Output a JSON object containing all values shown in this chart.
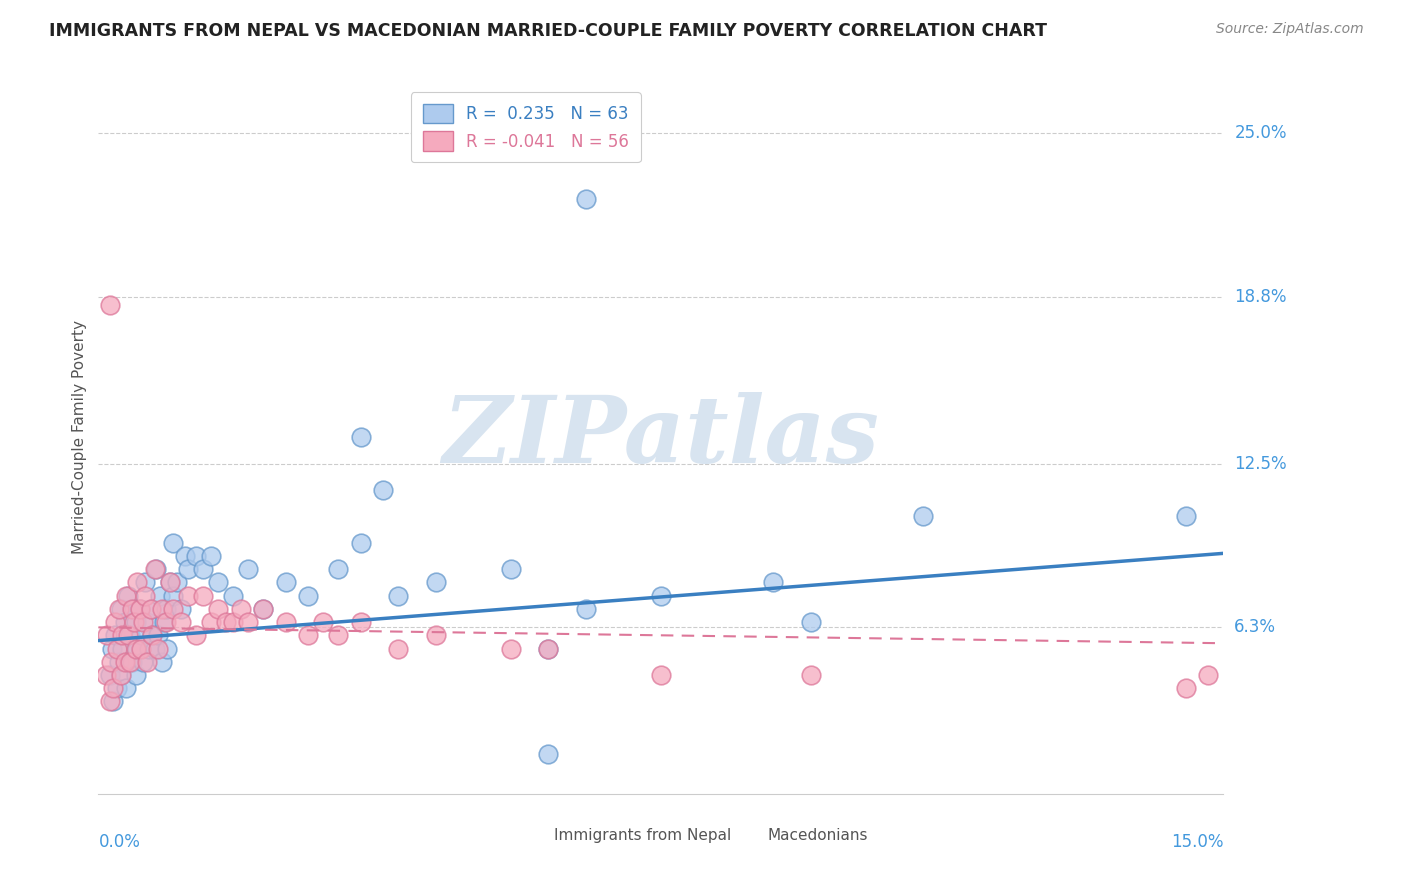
{
  "title": "IMMIGRANTS FROM NEPAL VS MACEDONIAN MARRIED-COUPLE FAMILY POVERTY CORRELATION CHART",
  "source": "Source: ZipAtlas.com",
  "ylabel": "Married-Couple Family Poverty",
  "xlim": [
    0.0,
    15.0
  ],
  "ylim": [
    0.0,
    27.0
  ],
  "ytick_labels": [
    "6.3%",
    "12.5%",
    "18.8%",
    "25.0%"
  ],
  "ytick_values": [
    6.3,
    12.5,
    18.8,
    25.0
  ],
  "legend1_R": "0.235",
  "legend1_N": "63",
  "legend2_R": "-0.041",
  "legend2_N": "56",
  "series1_color": "#aecbee",
  "series1_edge": "#6699cc",
  "series2_color": "#f5aabe",
  "series2_edge": "#dd7799",
  "line1_color": "#3a7fc1",
  "line2_color": "#dd7799",
  "watermark_color": "#d8e4f0",
  "background_color": "#ffffff",
  "grid_color": "#cccccc",
  "title_color": "#222222",
  "right_label_color": "#4499dd",
  "nepal_x": [
    0.15,
    0.18,
    0.2,
    0.22,
    0.25,
    0.27,
    0.3,
    0.3,
    0.32,
    0.35,
    0.37,
    0.4,
    0.4,
    0.42,
    0.45,
    0.47,
    0.5,
    0.5,
    0.52,
    0.55,
    0.57,
    0.6,
    0.62,
    0.65,
    0.67,
    0.7,
    0.72,
    0.75,
    0.77,
    0.8,
    0.82,
    0.85,
    0.87,
    0.9,
    0.92,
    0.95,
    1.0,
    1.0,
    1.05,
    1.1,
    1.15,
    1.2,
    1.3,
    1.4,
    1.5,
    1.6,
    1.8,
    2.0,
    2.2,
    2.5,
    2.8,
    3.2,
    3.5,
    4.0,
    4.5,
    5.5,
    6.0,
    6.5,
    7.5,
    9.0,
    9.5,
    11.0,
    14.5
  ],
  "nepal_y": [
    4.5,
    5.5,
    3.5,
    6.0,
    4.0,
    5.0,
    4.5,
    7.0,
    5.5,
    6.5,
    4.0,
    5.0,
    7.5,
    6.0,
    5.0,
    7.0,
    4.5,
    6.5,
    5.5,
    7.0,
    6.0,
    5.0,
    8.0,
    6.5,
    5.5,
    7.0,
    6.0,
    5.5,
    8.5,
    6.0,
    7.5,
    5.0,
    6.5,
    7.0,
    5.5,
    8.0,
    7.5,
    9.5,
    8.0,
    7.0,
    9.0,
    8.5,
    9.0,
    8.5,
    9.0,
    8.0,
    7.5,
    8.5,
    7.0,
    8.0,
    7.5,
    8.5,
    9.5,
    7.5,
    8.0,
    8.5,
    5.5,
    7.0,
    7.5,
    8.0,
    6.5,
    10.5,
    10.5
  ],
  "nepal_outlier_x": 6.5,
  "nepal_outlier_y": 22.5,
  "nepal_high1_x": 3.5,
  "nepal_high1_y": 13.5,
  "nepal_high2_x": 3.8,
  "nepal_high2_y": 11.5,
  "nepal_low_x": 6.0,
  "nepal_low_y": 1.5,
  "mac_x": [
    0.1,
    0.12,
    0.15,
    0.17,
    0.2,
    0.22,
    0.25,
    0.27,
    0.3,
    0.32,
    0.35,
    0.37,
    0.4,
    0.42,
    0.45,
    0.47,
    0.5,
    0.52,
    0.55,
    0.57,
    0.6,
    0.62,
    0.65,
    0.7,
    0.72,
    0.75,
    0.8,
    0.85,
    0.9,
    0.95,
    1.0,
    1.1,
    1.2,
    1.3,
    1.4,
    1.5,
    1.6,
    1.7,
    1.8,
    1.9,
    2.0,
    2.2,
    2.5,
    2.8,
    3.0,
    3.2,
    3.5,
    4.0,
    4.5,
    5.5,
    6.0,
    7.5,
    9.5,
    14.5,
    14.8
  ],
  "mac_y": [
    4.5,
    6.0,
    3.5,
    5.0,
    4.0,
    6.5,
    5.5,
    7.0,
    4.5,
    6.0,
    5.0,
    7.5,
    6.0,
    5.0,
    7.0,
    6.5,
    5.5,
    8.0,
    7.0,
    5.5,
    6.5,
    7.5,
    5.0,
    7.0,
    6.0,
    8.5,
    5.5,
    7.0,
    6.5,
    8.0,
    7.0,
    6.5,
    7.5,
    6.0,
    7.5,
    6.5,
    7.0,
    6.5,
    6.5,
    7.0,
    6.5,
    7.0,
    6.5,
    6.0,
    6.5,
    6.0,
    6.5,
    5.5,
    6.0,
    5.5,
    5.5,
    4.5,
    4.5,
    4.0,
    4.5
  ],
  "mac_outlier_x": 0.15,
  "mac_outlier_y": 18.5,
  "line1_slope": 0.22,
  "line1_intercept": 5.8,
  "line2_slope": -0.04,
  "line2_intercept": 6.3
}
